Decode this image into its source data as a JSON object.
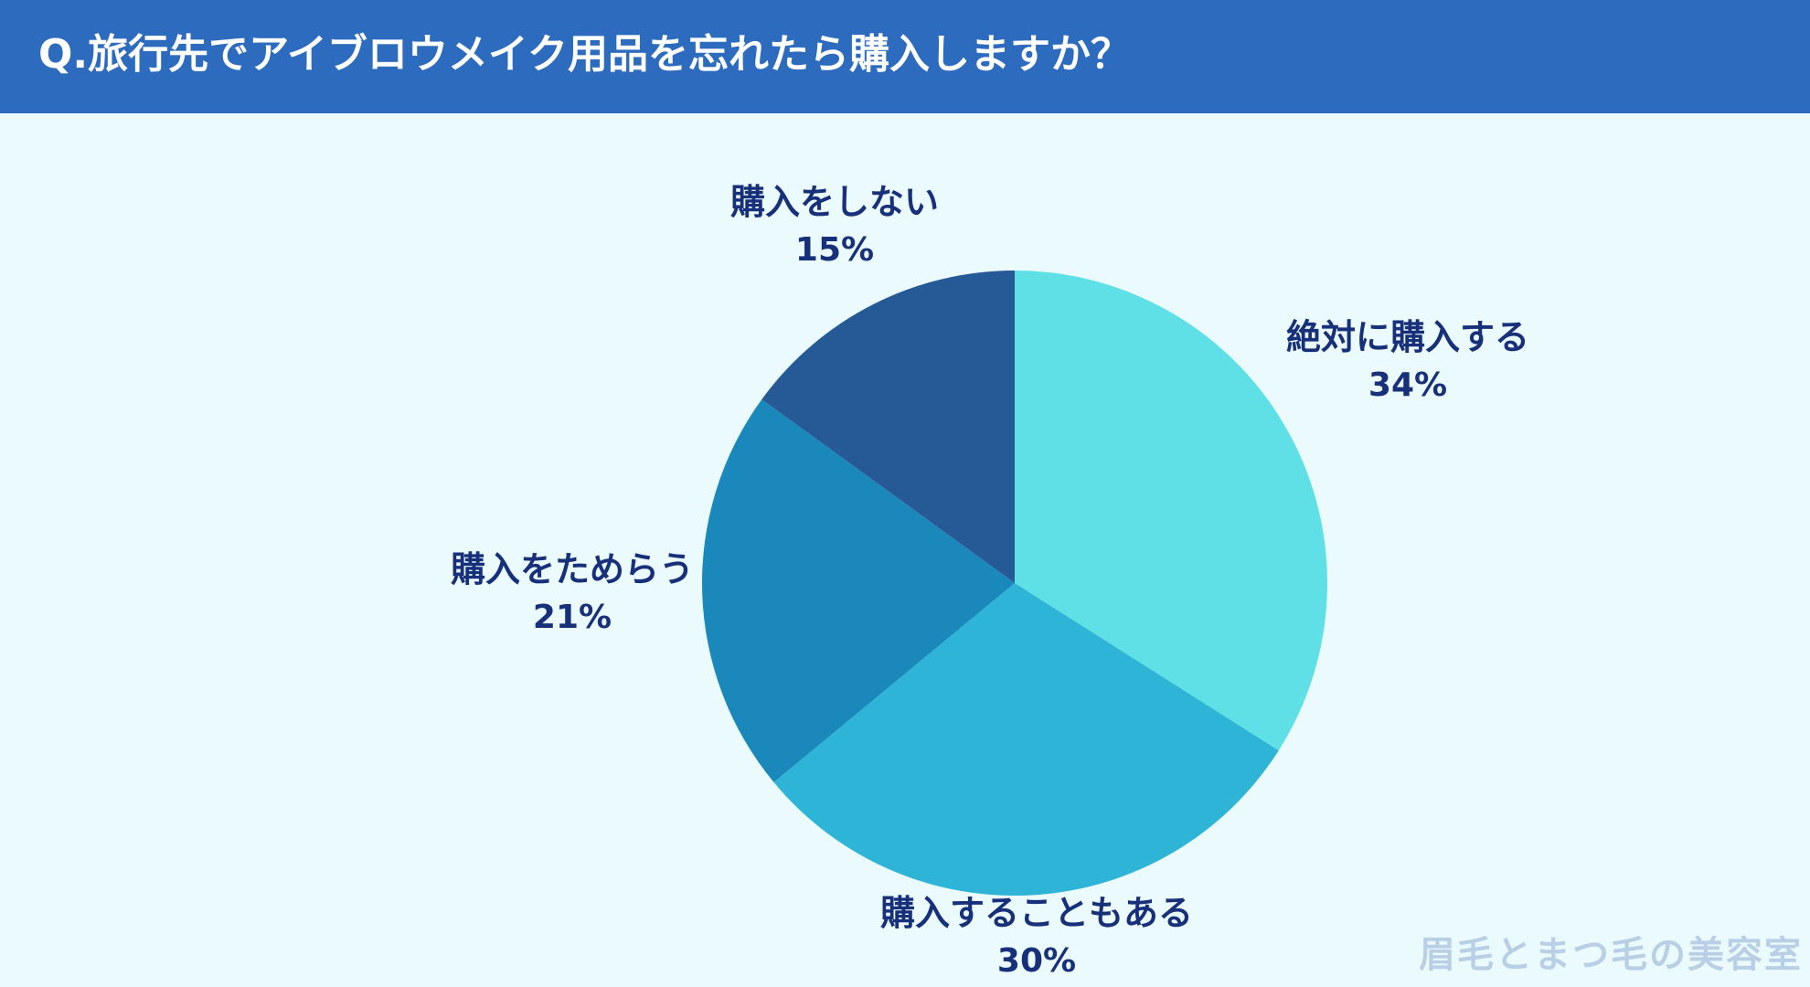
{
  "header": {
    "title": "Q.旅行先でアイブロウメイク用品を忘れたら購入しますか？"
  },
  "chart_data": {
    "type": "pie",
    "title": "Q.旅行先でアイブロウメイク用品を忘れたら購入しますか？",
    "slices": [
      {
        "label": "絶対に購入する",
        "value": 34,
        "display": "34%",
        "color": "#5ee0e6"
      },
      {
        "label": "購入することもある",
        "value": 30,
        "display": "30%",
        "color": "#2eb4d6"
      },
      {
        "label": "購入をためらう",
        "value": 21,
        "display": "21%",
        "color": "#1b88bb"
      },
      {
        "label": "購入をしない",
        "value": 15,
        "display": "15%",
        "color": "#265a96"
      }
    ],
    "start_angle_deg": 0,
    "direction": "clockwise"
  },
  "watermark": {
    "text": "眉毛とまつ毛の美容室"
  }
}
